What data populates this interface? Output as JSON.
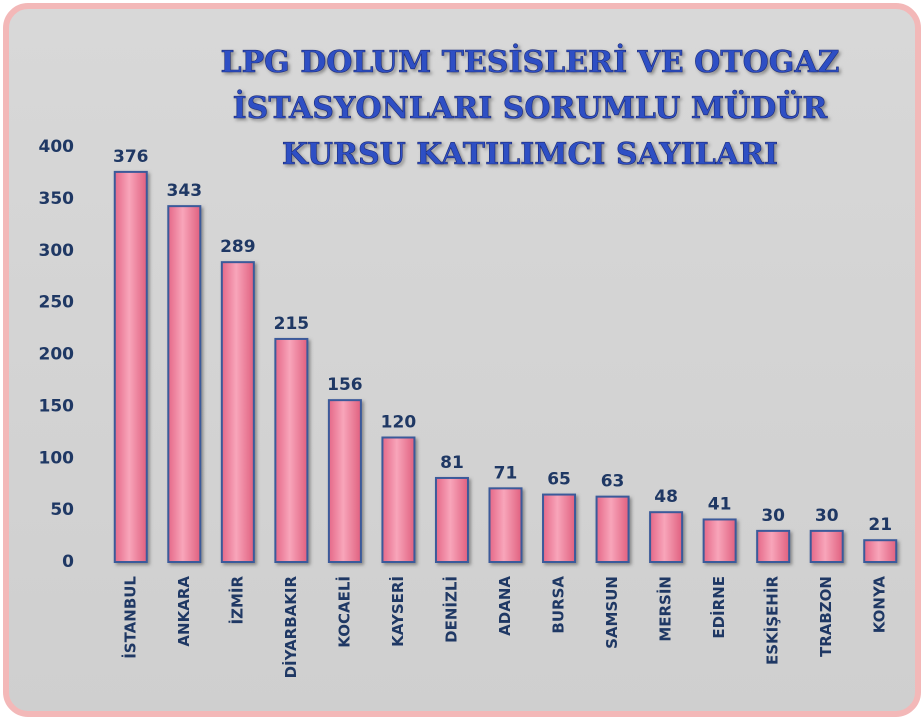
{
  "chart_data": {
    "type": "bar",
    "title_lines": [
      "LPG DOLUM TESİSLERİ VE OTOGAZ",
      "İSTASYONLARI SORUMLU MÜDÜR",
      "KURSU KATILIMCI SAYILARI"
    ],
    "categories": [
      "İSTANBUL",
      "ANKARA",
      "İZMİR",
      "DİYARBAKIR",
      "KOCAELİ",
      "KAYSERİ",
      "DENİZLİ",
      "ADANA",
      "BURSA",
      "SAMSUN",
      "MERSİN",
      "EDİRNE",
      "ESKİŞEHİR",
      "TRABZON",
      "KONYA"
    ],
    "values": [
      376,
      343,
      289,
      215,
      156,
      120,
      81,
      71,
      65,
      63,
      48,
      41,
      30,
      30,
      21
    ],
    "color": "#f07c9a",
    "ylim": [
      0,
      400
    ],
    "yticks": [
      0,
      50,
      100,
      150,
      200,
      250,
      300,
      350,
      400
    ],
    "grid": false
  }
}
